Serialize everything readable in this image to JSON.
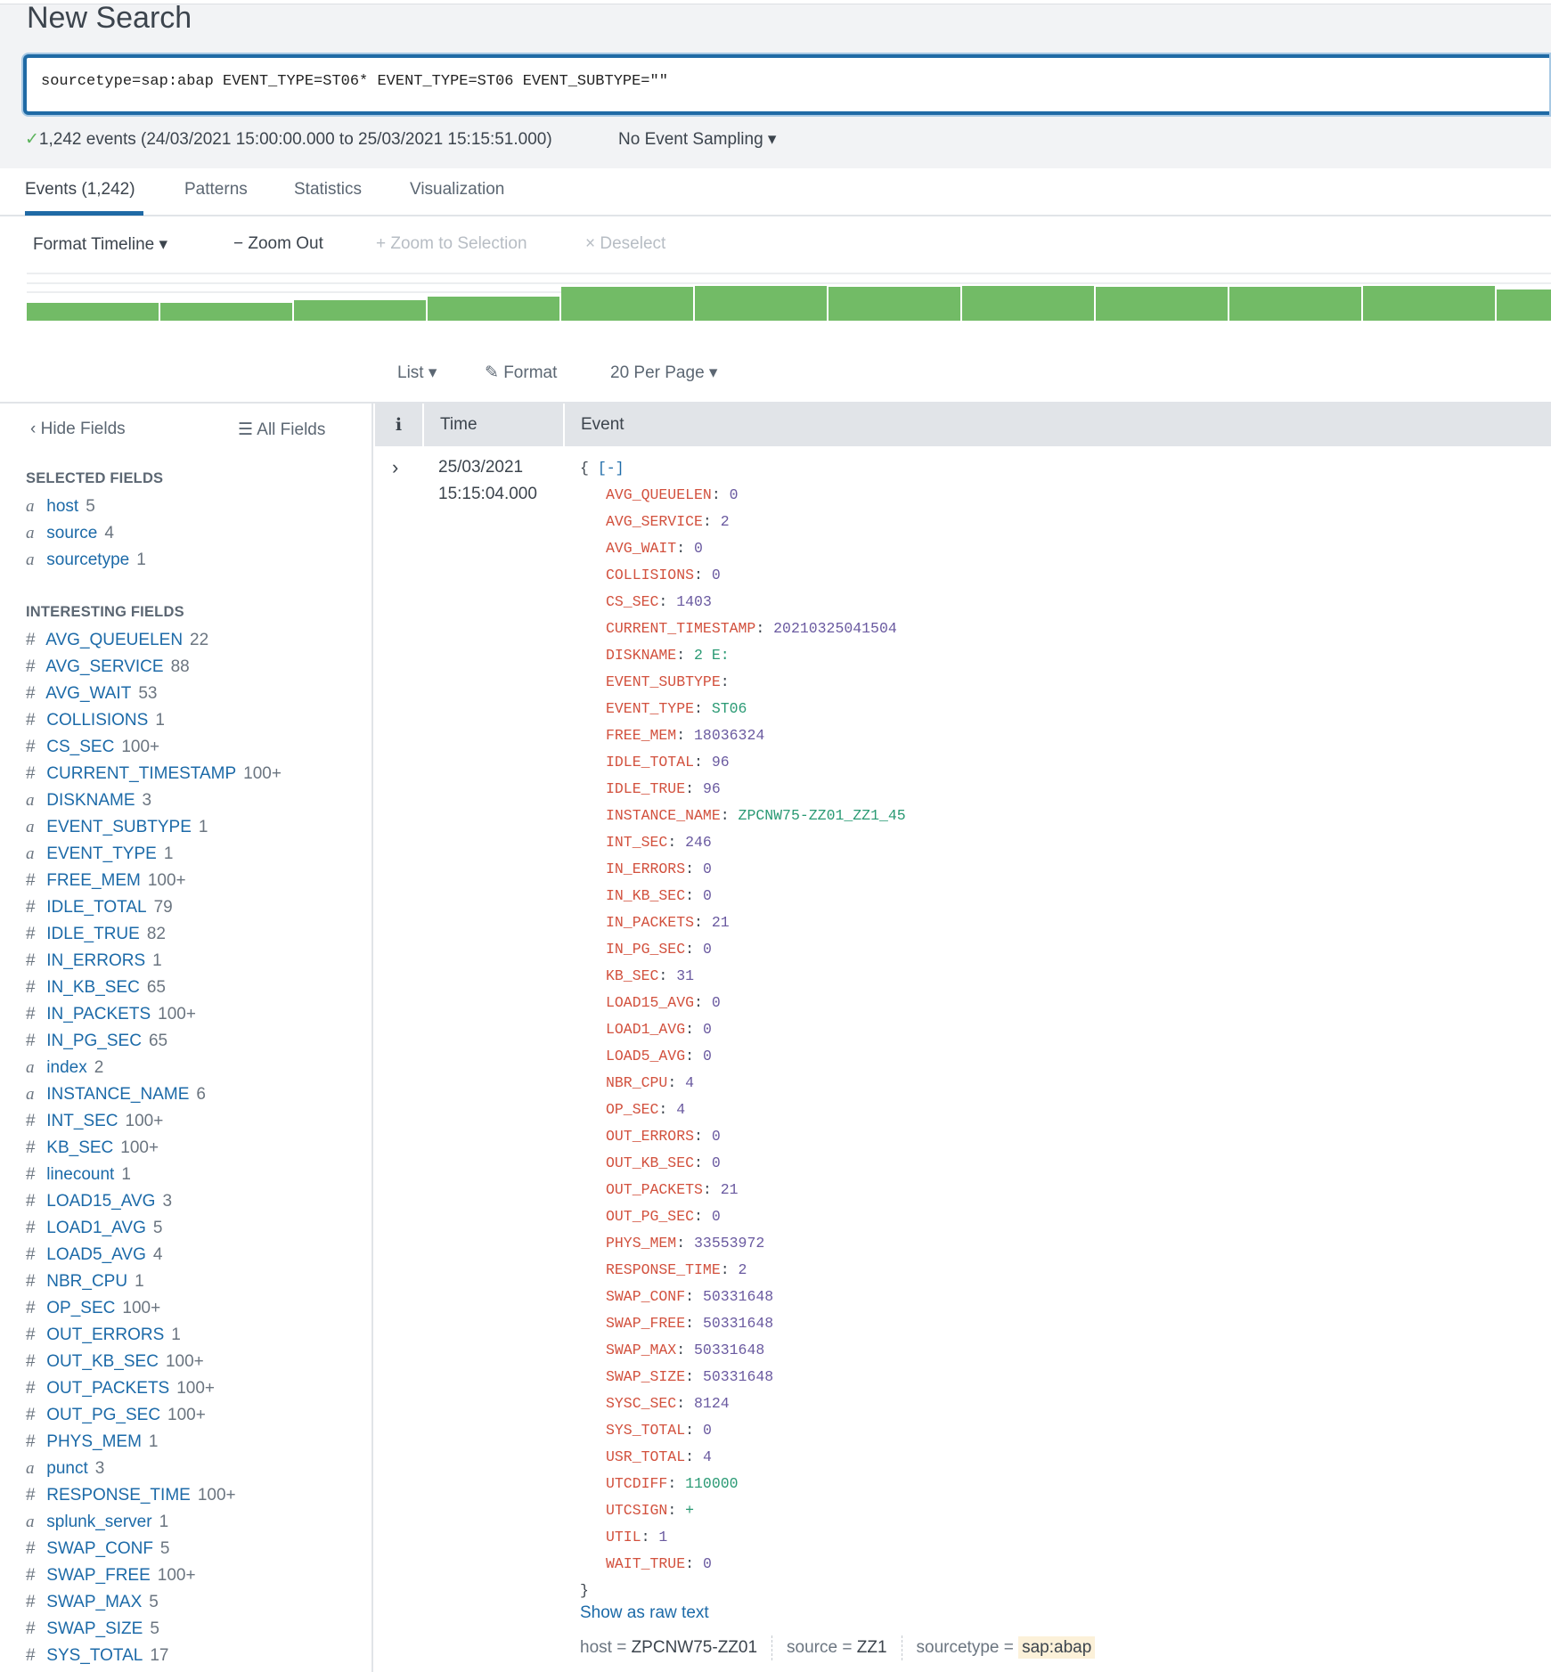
{
  "header": {
    "title": "New Search"
  },
  "search": {
    "query": "sourcetype=sap:abap EVENT_TYPE=ST06* EVENT_TYPE=ST06 EVENT_SUBTYPE=\"\""
  },
  "status": {
    "check": "✓",
    "summary": "1,242 events (24/03/2021 15:00:00.000 to 25/03/2021 15:15:51.000)",
    "sampling": "No Event Sampling ▾"
  },
  "tabs": [
    {
      "label": "Events (1,242)",
      "active": true
    },
    {
      "label": "Patterns"
    },
    {
      "label": "Statistics"
    },
    {
      "label": "Visualization"
    }
  ],
  "timeline_toolbar": {
    "format": "Format Timeline ▾",
    "zoom_out": "− Zoom Out",
    "zoom_selection": "+ Zoom to Selection",
    "deselect": "× Deselect"
  },
  "timeline": {
    "bar_color": "#72bb66",
    "bar_levels": [
      0.52,
      0.52,
      0.59,
      0.7,
      0.97,
      1,
      0.97,
      1,
      0.97,
      0.97,
      1,
      0.91
    ]
  },
  "results_toolbar": {
    "list": "List ▾",
    "format": "Format",
    "per_page": "20 Per Page ▾"
  },
  "sidebar": {
    "hide_fields": "Hide Fields",
    "all_fields": "All Fields",
    "selected_title": "SELECTED FIELDS",
    "selected": [
      {
        "t": "a",
        "name": "host",
        "count": "5"
      },
      {
        "t": "a",
        "name": "source",
        "count": "4"
      },
      {
        "t": "a",
        "name": "sourcetype",
        "count": "1"
      }
    ],
    "interesting_title": "INTERESTING FIELDS",
    "interesting": [
      {
        "t": "#",
        "name": "AVG_QUEUELEN",
        "count": "22"
      },
      {
        "t": "#",
        "name": "AVG_SERVICE",
        "count": "88"
      },
      {
        "t": "#",
        "name": "AVG_WAIT",
        "count": "53"
      },
      {
        "t": "#",
        "name": "COLLISIONS",
        "count": "1"
      },
      {
        "t": "#",
        "name": "CS_SEC",
        "count": "100+"
      },
      {
        "t": "#",
        "name": "CURRENT_TIMESTAMP",
        "count": "100+"
      },
      {
        "t": "a",
        "name": "DISKNAME",
        "count": "3"
      },
      {
        "t": "a",
        "name": "EVENT_SUBTYPE",
        "count": "1"
      },
      {
        "t": "a",
        "name": "EVENT_TYPE",
        "count": "1"
      },
      {
        "t": "#",
        "name": "FREE_MEM",
        "count": "100+"
      },
      {
        "t": "#",
        "name": "IDLE_TOTAL",
        "count": "79"
      },
      {
        "t": "#",
        "name": "IDLE_TRUE",
        "count": "82"
      },
      {
        "t": "#",
        "name": "IN_ERRORS",
        "count": "1"
      },
      {
        "t": "#",
        "name": "IN_KB_SEC",
        "count": "65"
      },
      {
        "t": "#",
        "name": "IN_PACKETS",
        "count": "100+"
      },
      {
        "t": "#",
        "name": "IN_PG_SEC",
        "count": "65"
      },
      {
        "t": "a",
        "name": "index",
        "count": "2"
      },
      {
        "t": "a",
        "name": "INSTANCE_NAME",
        "count": "6"
      },
      {
        "t": "#",
        "name": "INT_SEC",
        "count": "100+"
      },
      {
        "t": "#",
        "name": "KB_SEC",
        "count": "100+"
      },
      {
        "t": "#",
        "name": "linecount",
        "count": "1"
      },
      {
        "t": "#",
        "name": "LOAD15_AVG",
        "count": "3"
      },
      {
        "t": "#",
        "name": "LOAD1_AVG",
        "count": "5"
      },
      {
        "t": "#",
        "name": "LOAD5_AVG",
        "count": "4"
      },
      {
        "t": "#",
        "name": "NBR_CPU",
        "count": "1"
      },
      {
        "t": "#",
        "name": "OP_SEC",
        "count": "100+"
      },
      {
        "t": "#",
        "name": "OUT_ERRORS",
        "count": "1"
      },
      {
        "t": "#",
        "name": "OUT_KB_SEC",
        "count": "100+"
      },
      {
        "t": "#",
        "name": "OUT_PACKETS",
        "count": "100+"
      },
      {
        "t": "#",
        "name": "OUT_PG_SEC",
        "count": "100+"
      },
      {
        "t": "#",
        "name": "PHYS_MEM",
        "count": "1"
      },
      {
        "t": "a",
        "name": "punct",
        "count": "3"
      },
      {
        "t": "#",
        "name": "RESPONSE_TIME",
        "count": "100+"
      },
      {
        "t": "a",
        "name": "splunk_server",
        "count": "1"
      },
      {
        "t": "#",
        "name": "SWAP_CONF",
        "count": "5"
      },
      {
        "t": "#",
        "name": "SWAP_FREE",
        "count": "100+"
      },
      {
        "t": "#",
        "name": "SWAP_MAX",
        "count": "5"
      },
      {
        "t": "#",
        "name": "SWAP_SIZE",
        "count": "5"
      },
      {
        "t": "#",
        "name": "SYS_TOTAL",
        "count": "17"
      }
    ]
  },
  "table": {
    "info_header": "i",
    "time_header": "Time",
    "event_header": "Event"
  },
  "event": {
    "date": "25/03/2021",
    "time": "15:15:04.000",
    "open": "{",
    "collapse": "[-]",
    "close": "}",
    "fields": [
      {
        "k": "AVG_QUEUELEN",
        "v": "0",
        "t": "num"
      },
      {
        "k": "AVG_SERVICE",
        "v": "2",
        "t": "num"
      },
      {
        "k": "AVG_WAIT",
        "v": "0",
        "t": "num"
      },
      {
        "k": "COLLISIONS",
        "v": "0",
        "t": "num"
      },
      {
        "k": "CS_SEC",
        "v": "1403",
        "t": "num"
      },
      {
        "k": "CURRENT_TIMESTAMP",
        "v": "20210325041504",
        "t": "num"
      },
      {
        "k": "DISKNAME",
        "v": "2 E:",
        "t": "str"
      },
      {
        "k": "EVENT_SUBTYPE",
        "v": "",
        "t": "str"
      },
      {
        "k": "EVENT_TYPE",
        "v": "ST06",
        "t": "str"
      },
      {
        "k": "FREE_MEM",
        "v": "18036324",
        "t": "num"
      },
      {
        "k": "IDLE_TOTAL",
        "v": "96",
        "t": "num"
      },
      {
        "k": "IDLE_TRUE",
        "v": "96",
        "t": "num"
      },
      {
        "k": "INSTANCE_NAME",
        "v": "ZPCNW75-ZZ01_ZZ1_45",
        "t": "str"
      },
      {
        "k": "INT_SEC",
        "v": "246",
        "t": "num"
      },
      {
        "k": "IN_ERRORS",
        "v": "0",
        "t": "num"
      },
      {
        "k": "IN_KB_SEC",
        "v": "0",
        "t": "num"
      },
      {
        "k": "IN_PACKETS",
        "v": "21",
        "t": "num"
      },
      {
        "k": "IN_PG_SEC",
        "v": "0",
        "t": "num"
      },
      {
        "k": "KB_SEC",
        "v": "31",
        "t": "num"
      },
      {
        "k": "LOAD15_AVG",
        "v": "0",
        "t": "num"
      },
      {
        "k": "LOAD1_AVG",
        "v": "0",
        "t": "num"
      },
      {
        "k": "LOAD5_AVG",
        "v": "0",
        "t": "num"
      },
      {
        "k": "NBR_CPU",
        "v": "4",
        "t": "num"
      },
      {
        "k": "OP_SEC",
        "v": "4",
        "t": "num"
      },
      {
        "k": "OUT_ERRORS",
        "v": "0",
        "t": "num"
      },
      {
        "k": "OUT_KB_SEC",
        "v": "0",
        "t": "num"
      },
      {
        "k": "OUT_PACKETS",
        "v": "21",
        "t": "num"
      },
      {
        "k": "OUT_PG_SEC",
        "v": "0",
        "t": "num"
      },
      {
        "k": "PHYS_MEM",
        "v": "33553972",
        "t": "num"
      },
      {
        "k": "RESPONSE_TIME",
        "v": "2",
        "t": "num"
      },
      {
        "k": "SWAP_CONF",
        "v": "50331648",
        "t": "num"
      },
      {
        "k": "SWAP_FREE",
        "v": "50331648",
        "t": "num"
      },
      {
        "k": "SWAP_MAX",
        "v": "50331648",
        "t": "num"
      },
      {
        "k": "SWAP_SIZE",
        "v": "50331648",
        "t": "num"
      },
      {
        "k": "SYSC_SEC",
        "v": "8124",
        "t": "num"
      },
      {
        "k": "SYS_TOTAL",
        "v": "0",
        "t": "num"
      },
      {
        "k": "USR_TOTAL",
        "v": "4",
        "t": "num"
      },
      {
        "k": "UTCDIFF",
        "v": "110000",
        "t": "str"
      },
      {
        "k": "UTCSIGN",
        "v": "+",
        "t": "str"
      },
      {
        "k": "UTIL",
        "v": "1",
        "t": "num"
      },
      {
        "k": "WAIT_TRUE",
        "v": "0",
        "t": "num"
      }
    ],
    "show_raw": "Show as raw text",
    "meta": [
      {
        "k": "host",
        "v": "ZPCNW75-ZZ01"
      },
      {
        "k": "source",
        "v": "ZZ1"
      },
      {
        "k": "sourcetype",
        "v": "sap:abap",
        "highlight": true
      }
    ]
  },
  "colors": {
    "accent": "#1f6aa5",
    "key": "#d2513e",
    "number": "#6a5aa0",
    "string": "#2a9a74",
    "link": "#1c6aa8",
    "highlight": "#fcf1d9"
  }
}
